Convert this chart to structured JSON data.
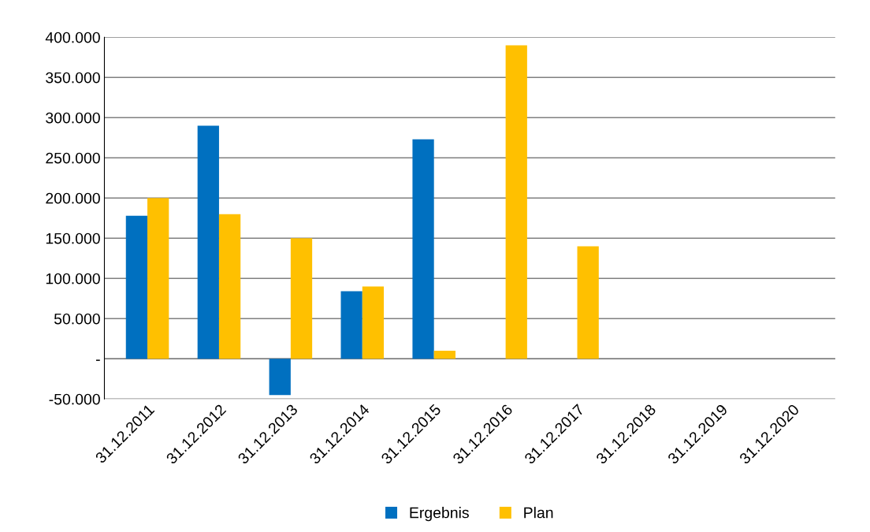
{
  "chart_data": {
    "type": "bar",
    "categories": [
      "31.12.2011",
      "31.12.2012",
      "31.12.2013",
      "31.12.2014",
      "31.12.2015",
      "31.12.2016",
      "31.12.2017",
      "31.12.2018",
      "31.12.2019",
      "31.12.2020"
    ],
    "series": [
      {
        "name": "Ergebnis",
        "color": "#0070c0",
        "values": [
          178000,
          290000,
          -45000,
          84000,
          273000,
          null,
          null,
          null,
          null,
          null
        ]
      },
      {
        "name": "Plan",
        "color": "#ffc000",
        "values": [
          200000,
          180000,
          150000,
          90000,
          10000,
          390000,
          140000,
          0,
          0,
          0
        ]
      }
    ],
    "ylim": [
      -50000,
      400000
    ],
    "yticks": [
      {
        "value": -50000,
        "label": "-50.000"
      },
      {
        "value": 0,
        "label": "-"
      },
      {
        "value": 50000,
        "label": "50.000"
      },
      {
        "value": 100000,
        "label": "100.000"
      },
      {
        "value": 150000,
        "label": "150.000"
      },
      {
        "value": 200000,
        "label": "200.000"
      },
      {
        "value": 250000,
        "label": "250.000"
      },
      {
        "value": 300000,
        "label": "300.000"
      },
      {
        "value": 350000,
        "label": "350.000"
      },
      {
        "value": 400000,
        "label": "400.000"
      }
    ],
    "grid": "y",
    "legend": "bottom"
  }
}
